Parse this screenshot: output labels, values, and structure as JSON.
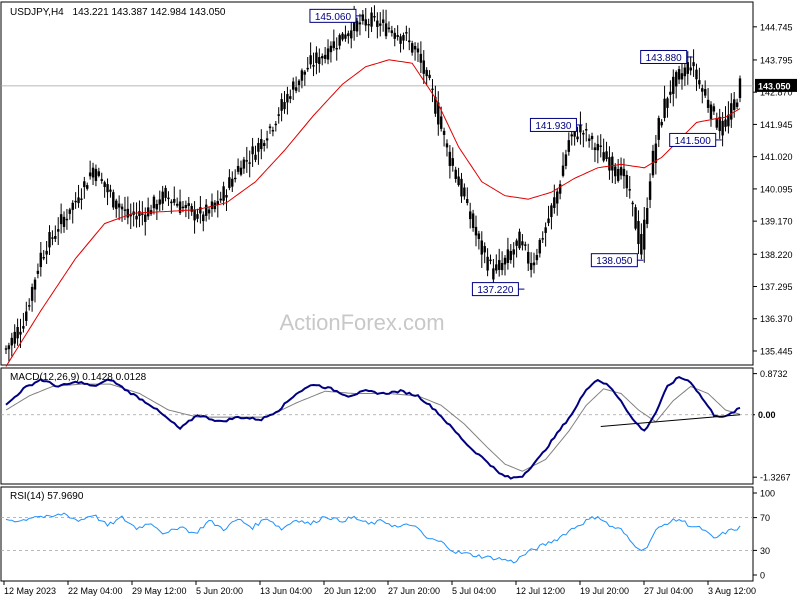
{
  "header": {
    "symbol": "USDJPY,H4",
    "ohlc": "143.221 143.387 142.984 143.050"
  },
  "watermark": "ActionForex.com",
  "colors": {
    "bull": "#000000",
    "bear": "#000000",
    "ma": "#e00000",
    "macd": "#000080",
    "signal": "#808080",
    "rsi": "#1e90ff",
    "label_border": "#000080"
  },
  "chart_data": [
    {
      "type": "candlestick",
      "title": "USDJPY,H4",
      "ylim": [
        135.1,
        145.4
      ],
      "yticks": [
        "144.745",
        "143.795",
        "142.870",
        "141.945",
        "141.020",
        "140.095",
        "139.170",
        "138.220",
        "137.295",
        "136.370",
        "135.445"
      ],
      "current_price": "143.050",
      "xticks": [
        "12 May 2023",
        "22 May 04:00",
        "29 May 12:00",
        "5 Jun 20:00",
        "13 Jun 04:00",
        "20 Jun 12:00",
        "27 Jun 20:00",
        "5 Jul 04:00",
        "12 Jul 12:00",
        "19 Jul 20:00",
        "27 Jul 04:00",
        "3 Aug 12:00"
      ],
      "anchors": [
        [
          0,
          135.5
        ],
        [
          6,
          136.3
        ],
        [
          12,
          138.2
        ],
        [
          18,
          139.0
        ],
        [
          25,
          139.9
        ],
        [
          30,
          140.7
        ],
        [
          36,
          139.9
        ],
        [
          42,
          139.3
        ],
        [
          48,
          139.4
        ],
        [
          55,
          139.9
        ],
        [
          62,
          139.5
        ],
        [
          68,
          139.3
        ],
        [
          74,
          139.8
        ],
        [
          80,
          140.7
        ],
        [
          86,
          141.2
        ],
        [
          92,
          142.0
        ],
        [
          98,
          142.9
        ],
        [
          104,
          143.6
        ],
        [
          110,
          144.0
        ],
        [
          116,
          144.5
        ],
        [
          121,
          144.8
        ],
        [
          126,
          144.9
        ],
        [
          132,
          144.7
        ],
        [
          138,
          144.4
        ],
        [
          142,
          143.9
        ],
        [
          147,
          142.8
        ],
        [
          152,
          141.2
        ],
        [
          158,
          139.8
        ],
        [
          163,
          138.5
        ],
        [
          168,
          137.7
        ],
        [
          172,
          138.0
        ],
        [
          177,
          138.6
        ],
        [
          181,
          137.9
        ],
        [
          186,
          139.0
        ],
        [
          190,
          140.0
        ],
        [
          194,
          141.5
        ],
        [
          198,
          141.8
        ],
        [
          203,
          141.3
        ],
        [
          208,
          140.9
        ],
        [
          213,
          140.4
        ],
        [
          216,
          139.5
        ],
        [
          219,
          138.3
        ],
        [
          222,
          140.5
        ],
        [
          225,
          141.9
        ],
        [
          228,
          142.8
        ],
        [
          232,
          143.3
        ],
        [
          236,
          143.7
        ],
        [
          240,
          142.9
        ],
        [
          244,
          142.2
        ],
        [
          247,
          141.8
        ],
        [
          250,
          142.3
        ],
        [
          253,
          143.05
        ]
      ],
      "moving_average": [
        [
          0,
          135.0
        ],
        [
          12,
          136.6
        ],
        [
          24,
          138.1
        ],
        [
          34,
          139.1
        ],
        [
          44,
          139.4
        ],
        [
          56,
          139.45
        ],
        [
          66,
          139.5
        ],
        [
          76,
          139.7
        ],
        [
          86,
          140.3
        ],
        [
          96,
          141.2
        ],
        [
          106,
          142.2
        ],
        [
          116,
          143.1
        ],
        [
          124,
          143.6
        ],
        [
          132,
          143.8
        ],
        [
          140,
          143.7
        ],
        [
          148,
          142.7
        ],
        [
          156,
          141.3
        ],
        [
          164,
          140.3
        ],
        [
          172,
          139.9
        ],
        [
          180,
          139.8
        ],
        [
          188,
          140.0
        ],
        [
          196,
          140.4
        ],
        [
          204,
          140.7
        ],
        [
          212,
          140.8
        ],
        [
          220,
          140.7
        ],
        [
          226,
          141.0
        ],
        [
          232,
          141.5
        ],
        [
          238,
          142.0
        ],
        [
          244,
          142.1
        ],
        [
          248,
          142.15
        ],
        [
          253,
          142.4
        ]
      ],
      "annotations": [
        {
          "label": "145.060",
          "x": 122,
          "price": 145.06
        },
        {
          "label": "143.880",
          "x": 236,
          "price": 143.88
        },
        {
          "label": "141.930",
          "x": 198,
          "price": 141.93
        },
        {
          "label": "141.500",
          "x": 246,
          "price": 141.5
        },
        {
          "label": "138.050",
          "x": 219,
          "price": 138.05
        },
        {
          "label": "137.220",
          "x": 178,
          "price": 137.22
        }
      ]
    },
    {
      "type": "line",
      "title": "MACD(12,26,9) 0.1428 0.0128",
      "ylim": [
        -1.45,
        0.95
      ],
      "yticks": [
        "0.8732",
        "0.00",
        "-1.3267"
      ],
      "zero_marker": "0.00",
      "series": [
        {
          "name": "MACD",
          "points": [
            [
              0,
              0.2
            ],
            [
              6,
              0.55
            ],
            [
              12,
              0.75
            ],
            [
              18,
              0.6
            ],
            [
              25,
              0.7
            ],
            [
              30,
              0.6
            ],
            [
              36,
              0.75
            ],
            [
              42,
              0.5
            ],
            [
              50,
              0.2
            ],
            [
              56,
              -0.1
            ],
            [
              60,
              -0.3
            ],
            [
              66,
              0.0
            ],
            [
              74,
              -0.15
            ],
            [
              80,
              -0.05
            ],
            [
              88,
              -0.1
            ],
            [
              94,
              0.1
            ],
            [
              100,
              0.45
            ],
            [
              106,
              0.65
            ],
            [
              112,
              0.55
            ],
            [
              118,
              0.4
            ],
            [
              124,
              0.5
            ],
            [
              130,
              0.45
            ],
            [
              136,
              0.5
            ],
            [
              142,
              0.4
            ],
            [
              148,
              0.1
            ],
            [
              154,
              -0.3
            ],
            [
              160,
              -0.7
            ],
            [
              166,
              -1.0
            ],
            [
              170,
              -1.25
            ],
            [
              174,
              -1.35
            ],
            [
              178,
              -1.3
            ],
            [
              184,
              -0.9
            ],
            [
              190,
              -0.4
            ],
            [
              196,
              0.1
            ],
            [
              200,
              0.55
            ],
            [
              204,
              0.75
            ],
            [
              208,
              0.6
            ],
            [
              212,
              0.3
            ],
            [
              216,
              -0.1
            ],
            [
              220,
              -0.35
            ],
            [
              224,
              0.05
            ],
            [
              228,
              0.6
            ],
            [
              232,
              0.8
            ],
            [
              236,
              0.7
            ],
            [
              240,
              0.35
            ],
            [
              244,
              0.0
            ],
            [
              248,
              -0.05
            ],
            [
              253,
              0.14
            ]
          ]
        },
        {
          "name": "Signal",
          "points": [
            [
              0,
              0.1
            ],
            [
              8,
              0.4
            ],
            [
              16,
              0.6
            ],
            [
              26,
              0.65
            ],
            [
              36,
              0.65
            ],
            [
              46,
              0.45
            ],
            [
              56,
              0.1
            ],
            [
              66,
              -0.05
            ],
            [
              78,
              -0.05
            ],
            [
              90,
              -0.05
            ],
            [
              100,
              0.25
            ],
            [
              110,
              0.5
            ],
            [
              120,
              0.45
            ],
            [
              132,
              0.45
            ],
            [
              142,
              0.4
            ],
            [
              150,
              0.2
            ],
            [
              158,
              -0.2
            ],
            [
              166,
              -0.7
            ],
            [
              172,
              -1.05
            ],
            [
              178,
              -1.2
            ],
            [
              186,
              -0.95
            ],
            [
              194,
              -0.35
            ],
            [
              200,
              0.2
            ],
            [
              206,
              0.55
            ],
            [
              212,
              0.45
            ],
            [
              218,
              0.1
            ],
            [
              224,
              -0.15
            ],
            [
              230,
              0.3
            ],
            [
              236,
              0.6
            ],
            [
              242,
              0.45
            ],
            [
              248,
              0.1
            ],
            [
              253,
              0.01
            ]
          ]
        }
      ],
      "trendline": [
        [
          205,
          -0.25
        ],
        [
          253,
          0.0
        ]
      ]
    },
    {
      "type": "line",
      "title": "RSI(14) 57.9690",
      "ylim": [
        0,
        100
      ],
      "yticks": [
        "100",
        "70",
        "30",
        "0"
      ],
      "levels": [
        70,
        30
      ],
      "series": [
        {
          "name": "RSI",
          "points": [
            [
              0,
              68
            ],
            [
              5,
              66
            ],
            [
              10,
              72
            ],
            [
              15,
              70
            ],
            [
              20,
              75
            ],
            [
              25,
              66
            ],
            [
              30,
              74
            ],
            [
              35,
              60
            ],
            [
              40,
              70
            ],
            [
              45,
              57
            ],
            [
              50,
              64
            ],
            [
              55,
              49
            ],
            [
              60,
              60
            ],
            [
              65,
              50
            ],
            [
              70,
              66
            ],
            [
              75,
              56
            ],
            [
              80,
              68
            ],
            [
              85,
              58
            ],
            [
              90,
              70
            ],
            [
              95,
              56
            ],
            [
              100,
              68
            ],
            [
              105,
              62
            ],
            [
              110,
              72
            ],
            [
              115,
              66
            ],
            [
              120,
              70
            ],
            [
              125,
              62
            ],
            [
              130,
              66
            ],
            [
              135,
              58
            ],
            [
              140,
              62
            ],
            [
              145,
              45
            ],
            [
              150,
              40
            ],
            [
              155,
              28
            ],
            [
              160,
              25
            ],
            [
              165,
              22
            ],
            [
              170,
              20
            ],
            [
              175,
              16
            ],
            [
              180,
              28
            ],
            [
              185,
              36
            ],
            [
              190,
              44
            ],
            [
              195,
              56
            ],
            [
              200,
              66
            ],
            [
              204,
              72
            ],
            [
              208,
              60
            ],
            [
              212,
              55
            ],
            [
              216,
              38
            ],
            [
              220,
              30
            ],
            [
              224,
              54
            ],
            [
              228,
              64
            ],
            [
              232,
              68
            ],
            [
              236,
              60
            ],
            [
              240,
              56
            ],
            [
              244,
              44
            ],
            [
              248,
              52
            ],
            [
              253,
              58
            ]
          ]
        }
      ]
    }
  ]
}
